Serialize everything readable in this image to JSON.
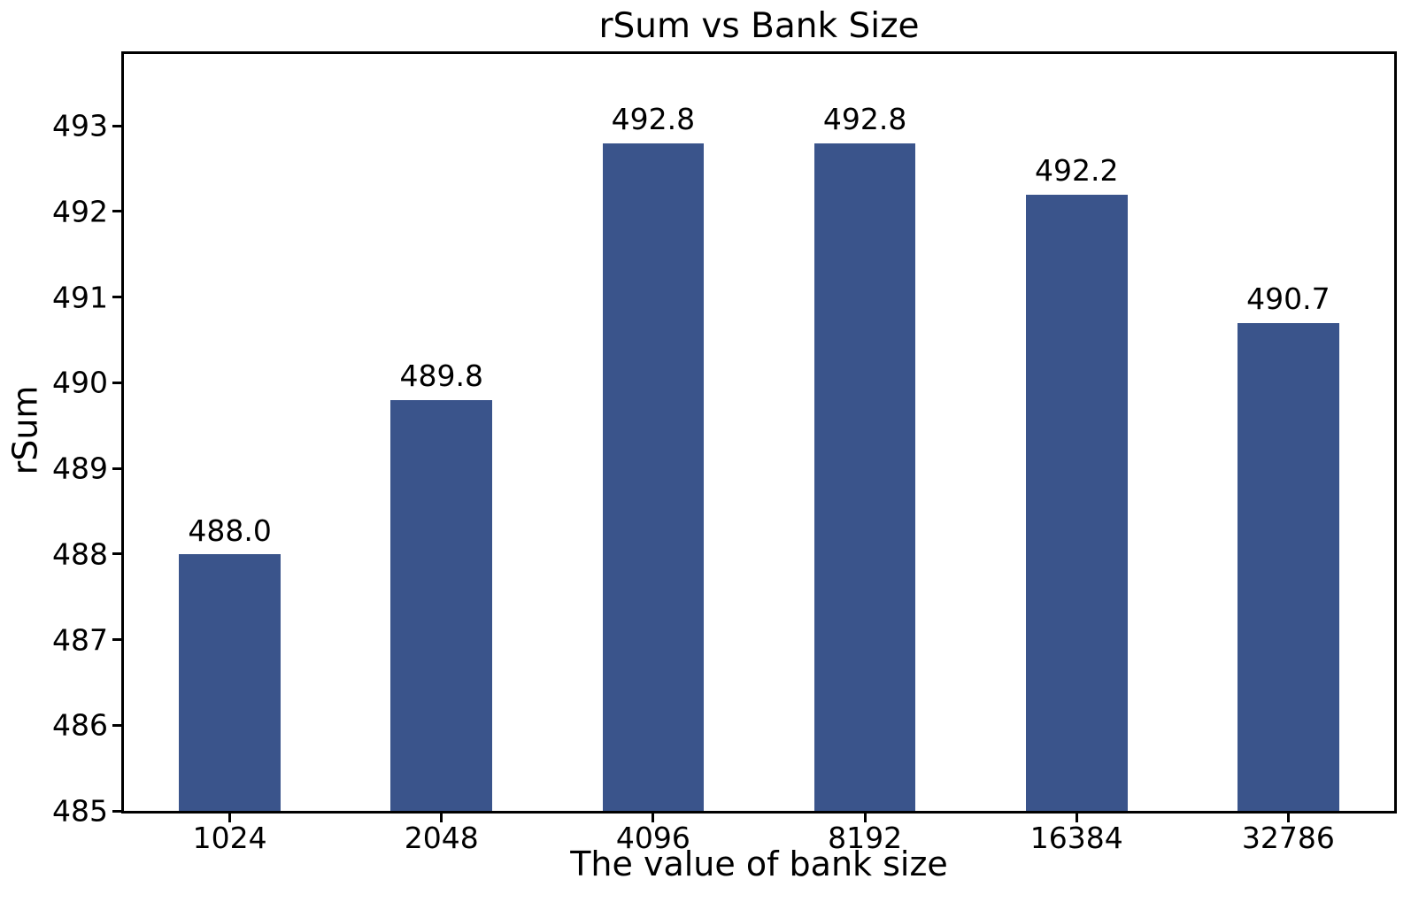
{
  "chart_data": {
    "type": "bar",
    "title": "rSum vs Bank Size",
    "xlabel": "The value of bank size",
    "ylabel": "rSum",
    "categories": [
      "1024",
      "2048",
      "4096",
      "8192",
      "16384",
      "32786"
    ],
    "values": [
      488.0,
      489.8,
      492.8,
      492.8,
      492.2,
      490.7
    ],
    "value_labels": [
      "488.0",
      "489.8",
      "492.8",
      "492.8",
      "492.2",
      "490.7"
    ],
    "yticks": [
      485,
      486,
      487,
      488,
      489,
      490,
      491,
      492,
      493
    ],
    "ylim": [
      485,
      493.84
    ],
    "bar_color": "#3a548b",
    "bar_width_fraction": 0.48,
    "grid": false,
    "legend_position": "none"
  }
}
